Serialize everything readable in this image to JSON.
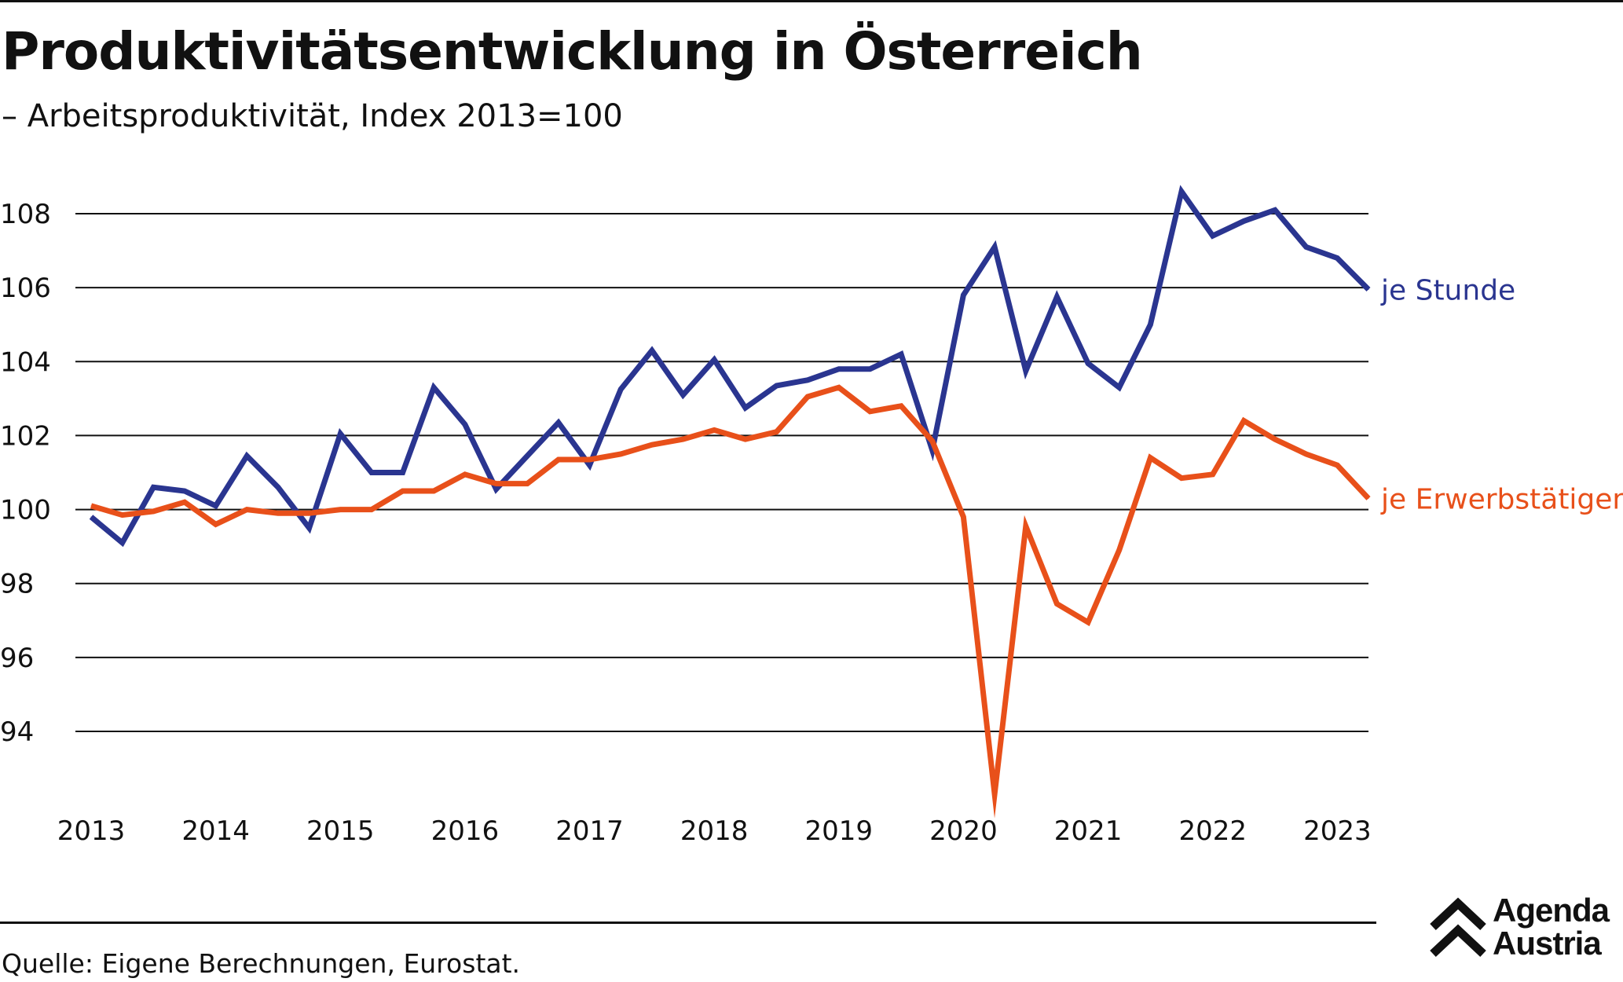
{
  "header": {
    "title": "Produktivitätsentwicklung in Österreich",
    "subtitle": "– Arbeitsproduktivität, Index 2013=100"
  },
  "footer": {
    "source": "Quelle: Eigene Berechnungen, Eurostat.",
    "logo_line1": "Agenda",
    "logo_line2": "Austria"
  },
  "colors": {
    "je_stunde": "#2a3590",
    "je_erwerbstaetigen": "#e8501a",
    "grid": "#111111"
  },
  "chart_data": {
    "type": "line",
    "title": "Produktivitätsentwicklung in Österreich",
    "subtitle": "– Arbeitsproduktivität, Index 2013=100",
    "xlabel": "",
    "ylabel": "",
    "x_start": 2013.0,
    "x_step": 0.25,
    "xlim": [
      2013.0,
      2023.25
    ],
    "ylim": [
      92,
      109
    ],
    "yticks": [
      94,
      96,
      98,
      100,
      102,
      104,
      106,
      108
    ],
    "xticks": [
      2013,
      2014,
      2015,
      2016,
      2017,
      2018,
      2019,
      2020,
      2021,
      2022,
      2023
    ],
    "grid": true,
    "legend": "line-end labels",
    "series": [
      {
        "name": "je Stunde",
        "color": "#2a3590",
        "values": [
          99.8,
          99.1,
          100.6,
          100.5,
          100.1,
          101.45,
          100.6,
          99.5,
          102.05,
          101.0,
          101.0,
          103.3,
          102.3,
          100.55,
          101.45,
          102.35,
          101.2,
          103.25,
          104.3,
          103.1,
          104.05,
          102.75,
          103.35,
          103.5,
          103.8,
          103.8,
          104.2,
          101.6,
          105.8,
          107.1,
          103.75,
          105.75,
          103.95,
          103.3,
          105.0,
          108.6,
          107.4,
          107.8,
          108.1,
          107.1,
          106.8,
          105.95
        ]
      },
      {
        "name": "je Erwerbstätigen",
        "color": "#e8501a",
        "values": [
          100.1,
          99.85,
          99.95,
          100.2,
          99.6,
          100.0,
          99.9,
          99.9,
          100.0,
          100.0,
          100.5,
          100.5,
          100.95,
          100.7,
          100.7,
          101.35,
          101.35,
          101.5,
          101.75,
          101.9,
          102.15,
          101.9,
          102.1,
          103.05,
          103.3,
          102.65,
          102.8,
          101.85,
          99.8,
          92.3,
          99.55,
          97.45,
          96.95,
          98.9,
          101.4,
          100.85,
          100.95,
          102.4,
          101.9,
          101.5,
          101.2,
          100.3
        ]
      }
    ]
  }
}
